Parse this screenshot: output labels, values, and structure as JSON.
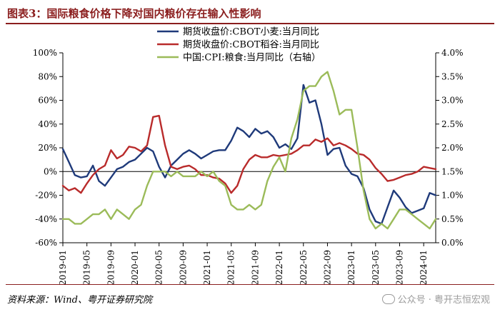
{
  "page": {
    "title": "图表3：国际粮食价格下降对国内粮价存在输入性影响",
    "source": "资料来源：Wind、粤开证券研究院",
    "watermark": "公众号 · 粤开志恒宏观",
    "watermark_icon": "wechat-icon"
  },
  "chart_data": {
    "type": "line",
    "title": "",
    "y_left": {
      "min": -60,
      "max": 100,
      "step": 20,
      "unit": "%"
    },
    "y_right": {
      "min": 0.0,
      "max": 4.0,
      "step": 0.5,
      "unit": "%"
    },
    "x_ticks": [
      "2019-01",
      "2019-05",
      "2019-09",
      "2020-01",
      "2020-05",
      "2020-09",
      "2021-01",
      "2021-05",
      "2021-09",
      "2022-01",
      "2022-05",
      "2022-09",
      "2023-01",
      "2023-05",
      "2023-09",
      "2024-01"
    ],
    "grid": false,
    "legend_placement": "top-center",
    "series": [
      {
        "name": "期货收盘价:CBOT小麦:当月同比",
        "axis": "left",
        "color": "#1f3a7a",
        "x": [
          "2019-01",
          "2019-02",
          "2019-03",
          "2019-04",
          "2019-05",
          "2019-06",
          "2019-07",
          "2019-08",
          "2019-09",
          "2019-10",
          "2019-11",
          "2019-12",
          "2020-01",
          "2020-02",
          "2020-03",
          "2020-04",
          "2020-05",
          "2020-06",
          "2020-07",
          "2020-08",
          "2020-09",
          "2020-10",
          "2020-11",
          "2020-12",
          "2021-01",
          "2021-02",
          "2021-03",
          "2021-04",
          "2021-05",
          "2021-06",
          "2021-07",
          "2021-08",
          "2021-09",
          "2021-10",
          "2021-11",
          "2021-12",
          "2022-01",
          "2022-02",
          "2022-03",
          "2022-04",
          "2022-05",
          "2022-06",
          "2022-07",
          "2022-08",
          "2022-09",
          "2022-10",
          "2022-11",
          "2022-12",
          "2023-01",
          "2023-02",
          "2023-03",
          "2023-04",
          "2023-05",
          "2023-06",
          "2023-07",
          "2023-08",
          "2023-09",
          "2023-10",
          "2023-11",
          "2023-12",
          "2024-01",
          "2024-02",
          "2024-03"
        ],
        "values": [
          19,
          8,
          -3,
          -5,
          -4,
          5,
          -8,
          -12,
          -5,
          2,
          4,
          8,
          10,
          15,
          20,
          17,
          4,
          -5,
          5,
          10,
          15,
          18,
          15,
          11,
          14,
          17,
          18,
          18,
          26,
          37,
          34,
          29,
          36,
          32,
          34,
          29,
          20,
          23,
          19,
          28,
          73,
          58,
          60,
          40,
          14,
          19,
          20,
          5,
          -2,
          -4,
          -14,
          -32,
          -42,
          -44,
          -30,
          -16,
          -22,
          -30,
          -35,
          -33,
          -31,
          -18,
          -20
        ]
      },
      {
        "name": "期货收盘价:CBOT稻谷:当月同比",
        "axis": "left",
        "color": "#b92b2b",
        "x": [
          "2019-01",
          "2019-02",
          "2019-03",
          "2019-04",
          "2019-05",
          "2019-06",
          "2019-07",
          "2019-08",
          "2019-09",
          "2019-10",
          "2019-11",
          "2019-12",
          "2020-01",
          "2020-02",
          "2020-03",
          "2020-04",
          "2020-05",
          "2020-06",
          "2020-07",
          "2020-08",
          "2020-09",
          "2020-10",
          "2020-11",
          "2020-12",
          "2021-01",
          "2021-02",
          "2021-03",
          "2021-04",
          "2021-05",
          "2021-06",
          "2021-07",
          "2021-08",
          "2021-09",
          "2021-10",
          "2021-11",
          "2021-12",
          "2022-01",
          "2022-02",
          "2022-03",
          "2022-04",
          "2022-05",
          "2022-06",
          "2022-07",
          "2022-08",
          "2022-09",
          "2022-10",
          "2022-11",
          "2022-12",
          "2023-01",
          "2023-02",
          "2023-03",
          "2023-04",
          "2023-05",
          "2023-06",
          "2023-07",
          "2023-08",
          "2023-09",
          "2023-10",
          "2023-11",
          "2023-12",
          "2024-01",
          "2024-02",
          "2024-03"
        ],
        "values": [
          -12,
          -16,
          -14,
          -18,
          -10,
          -3,
          2,
          5,
          18,
          11,
          14,
          21,
          20,
          17,
          22,
          46,
          47,
          22,
          4,
          2,
          4,
          5,
          2,
          -3,
          -3,
          -5,
          -6,
          -10,
          -18,
          -12,
          2,
          10,
          14,
          12,
          12,
          14,
          13,
          14,
          15,
          18,
          22,
          22,
          27,
          25,
          28,
          22,
          24,
          22,
          19,
          15,
          14,
          10,
          3,
          -2,
          -8,
          -7,
          -5,
          -3,
          -2,
          0,
          4,
          3,
          2
        ]
      },
      {
        "name": "中国:CPI:粮食:当月同比（右轴）",
        "axis": "right",
        "color": "#9bbb59",
        "x": [
          "2019-01",
          "2019-02",
          "2019-03",
          "2019-04",
          "2019-05",
          "2019-06",
          "2019-07",
          "2019-08",
          "2019-09",
          "2019-10",
          "2019-11",
          "2019-12",
          "2020-01",
          "2020-02",
          "2020-03",
          "2020-04",
          "2020-05",
          "2020-06",
          "2020-07",
          "2020-08",
          "2020-09",
          "2020-10",
          "2020-11",
          "2020-12",
          "2021-01",
          "2021-02",
          "2021-03",
          "2021-04",
          "2021-05",
          "2021-06",
          "2021-07",
          "2021-08",
          "2021-09",
          "2021-10",
          "2021-11",
          "2021-12",
          "2022-01",
          "2022-02",
          "2022-03",
          "2022-04",
          "2022-05",
          "2022-06",
          "2022-07",
          "2022-08",
          "2022-09",
          "2022-10",
          "2022-11",
          "2022-12",
          "2023-01",
          "2023-02",
          "2023-03",
          "2023-04",
          "2023-05",
          "2023-06",
          "2023-07",
          "2023-08",
          "2023-09",
          "2023-10",
          "2023-11",
          "2023-12",
          "2024-01",
          "2024-02",
          "2024-03"
        ],
        "values": [
          0.5,
          0.5,
          0.4,
          0.4,
          0.5,
          0.6,
          0.6,
          0.7,
          0.5,
          0.7,
          0.6,
          0.5,
          0.7,
          0.8,
          1.2,
          1.5,
          1.5,
          1.5,
          1.4,
          1.5,
          1.4,
          1.4,
          1.4,
          1.5,
          1.4,
          1.5,
          1.3,
          1.2,
          0.8,
          0.7,
          0.7,
          0.8,
          0.7,
          0.8,
          1.3,
          1.6,
          1.8,
          1.5,
          2.2,
          2.6,
          3.2,
          3.3,
          3.3,
          3.5,
          3.6,
          3.2,
          2.7,
          2.8,
          2.8,
          2.0,
          1.1,
          0.5,
          0.3,
          0.4,
          0.3,
          0.5,
          0.7,
          0.7,
          0.6,
          0.5,
          0.4,
          0.3,
          0.5
        ]
      }
    ]
  }
}
